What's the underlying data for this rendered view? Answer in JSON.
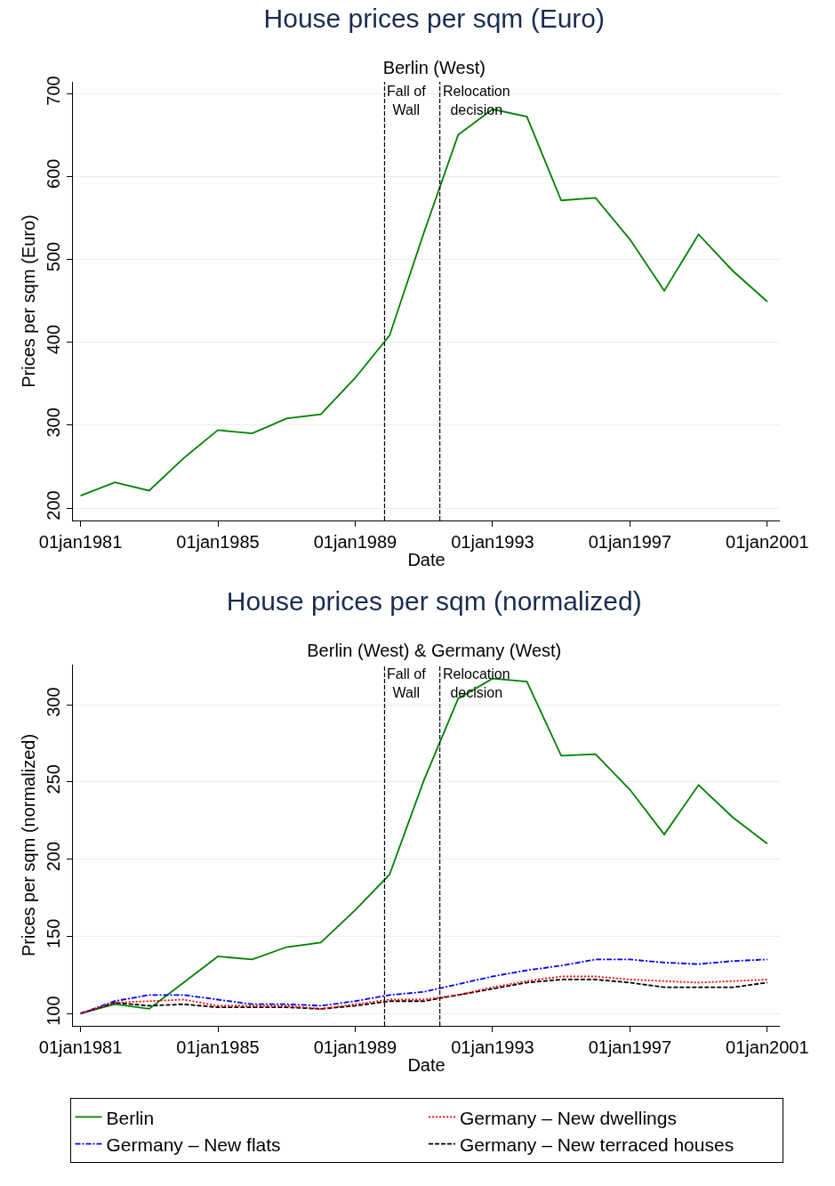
{
  "chart_data": [
    {
      "type": "line",
      "title": "House prices per sqm (Euro)",
      "subtitle": "Berlin (West)",
      "xlabel": "Date",
      "ylabel": "Prices per sqm (Euro)",
      "x": [
        "1981-01-01",
        "1982-01-01",
        "1983-01-01",
        "1984-01-01",
        "1985-01-01",
        "1986-01-01",
        "1987-01-01",
        "1988-01-01",
        "1989-01-01",
        "1990-01-01",
        "1991-01-01",
        "1992-01-01",
        "1993-01-01",
        "1994-01-01",
        "1995-01-01",
        "1996-01-01",
        "1997-01-01",
        "1998-01-01",
        "1999-01-01",
        "2000-01-01",
        "2001-01-01"
      ],
      "series": [
        {
          "color": "#008000",
          "line_style": "solid",
          "values": [
            215,
            231,
            221,
            260,
            294,
            290,
            308,
            313,
            357,
            408,
            532,
            650,
            681,
            672,
            571,
            574,
            524,
            462,
            530,
            486,
            449
          ]
        }
      ],
      "xlim": [
        "1980-10-12",
        "2001-05-15"
      ],
      "ylim": [
        185,
        714
      ],
      "xticks": [
        {
          "value": "1981-01-01",
          "label": "01jan1981"
        },
        {
          "value": "1985-01-01",
          "label": "01jan1985"
        },
        {
          "value": "1989-01-01",
          "label": "01jan1989"
        },
        {
          "value": "1993-01-01",
          "label": "01jan1993"
        },
        {
          "value": "1997-01-01",
          "label": "01jan1997"
        },
        {
          "value": "2001-01-01",
          "label": "01jan2001"
        }
      ],
      "yticks": [
        200,
        300,
        400,
        500,
        600,
        700
      ],
      "grid": "y",
      "legend": false,
      "marker": "none",
      "ref_lines": [
        {
          "axis": "x",
          "value": "1989-11-09",
          "label": "Fall of\nWall",
          "color": "#000000",
          "line_style": "dashed"
        },
        {
          "axis": "x",
          "value": "1991-06-20",
          "label": "Relocation\ndecision",
          "color": "#000000",
          "line_style": "dashed"
        }
      ]
    },
    {
      "type": "line",
      "title": "House prices per sqm (normalized)",
      "subtitle": "Berlin (West) & Germany (West)",
      "xlabel": "Date",
      "ylabel": "Prices per sqm (normalized)",
      "x": [
        "1981-01-01",
        "1982-01-01",
        "1983-01-01",
        "1984-01-01",
        "1985-01-01",
        "1986-01-01",
        "1987-01-01",
        "1988-01-01",
        "1989-01-01",
        "1990-01-01",
        "1991-01-01",
        "1992-01-01",
        "1993-01-01",
        "1994-01-01",
        "1995-01-01",
        "1996-01-01",
        "1997-01-01",
        "1998-01-01",
        "1999-01-01",
        "2000-01-01",
        "2001-01-01"
      ],
      "series": [
        {
          "name": "Berlin",
          "color": "#008000",
          "line_style": "solid",
          "values": [
            100,
            106,
            103,
            120,
            137,
            135,
            143,
            146,
            167,
            190,
            251,
            304,
            317,
            315,
            267,
            268,
            245,
            216,
            248,
            227,
            210
          ]
        },
        {
          "name": "Germany – New dwellings",
          "color": "#ff0000",
          "line_style": "dotted",
          "values": [
            100,
            107,
            108,
            109,
            105,
            105,
            105,
            103,
            106,
            109,
            109,
            112,
            117,
            121,
            124,
            124,
            122,
            121,
            120,
            121,
            122
          ]
        },
        {
          "name": "Germany – New flats",
          "color": "#0000ff",
          "line_style": "dashdot",
          "values": [
            100,
            108,
            112,
            112,
            109,
            106,
            106,
            105,
            108,
            112,
            114,
            119,
            124,
            128,
            131,
            135,
            135,
            133,
            132,
            134,
            135
          ]
        },
        {
          "name": "Germany – New terraced houses",
          "color": "#000000",
          "line_style": "dashed",
          "values": [
            100,
            107,
            105,
            106,
            104,
            104,
            104,
            103,
            105,
            108,
            108,
            112,
            116,
            120,
            122,
            122,
            120,
            117,
            117,
            117,
            120
          ]
        }
      ],
      "xlim": [
        "1980-10-12",
        "2001-05-15"
      ],
      "ylim": [
        92,
        326
      ],
      "xticks": [
        {
          "value": "1981-01-01",
          "label": "01jan1981"
        },
        {
          "value": "1985-01-01",
          "label": "01jan1985"
        },
        {
          "value": "1989-01-01",
          "label": "01jan1989"
        },
        {
          "value": "1993-01-01",
          "label": "01jan1993"
        },
        {
          "value": "1997-01-01",
          "label": "01jan1997"
        },
        {
          "value": "2001-01-01",
          "label": "01jan2001"
        }
      ],
      "yticks": [
        100,
        150,
        200,
        250,
        300
      ],
      "grid": "y",
      "legend": "bottom",
      "marker": "none",
      "ref_lines": [
        {
          "axis": "x",
          "value": "1989-11-09",
          "label": "Fall of\nWall",
          "color": "#000000",
          "line_style": "dashed"
        },
        {
          "axis": "x",
          "value": "1991-06-20",
          "label": "Relocation\ndecision",
          "color": "#000000",
          "line_style": "dashed"
        }
      ]
    }
  ]
}
